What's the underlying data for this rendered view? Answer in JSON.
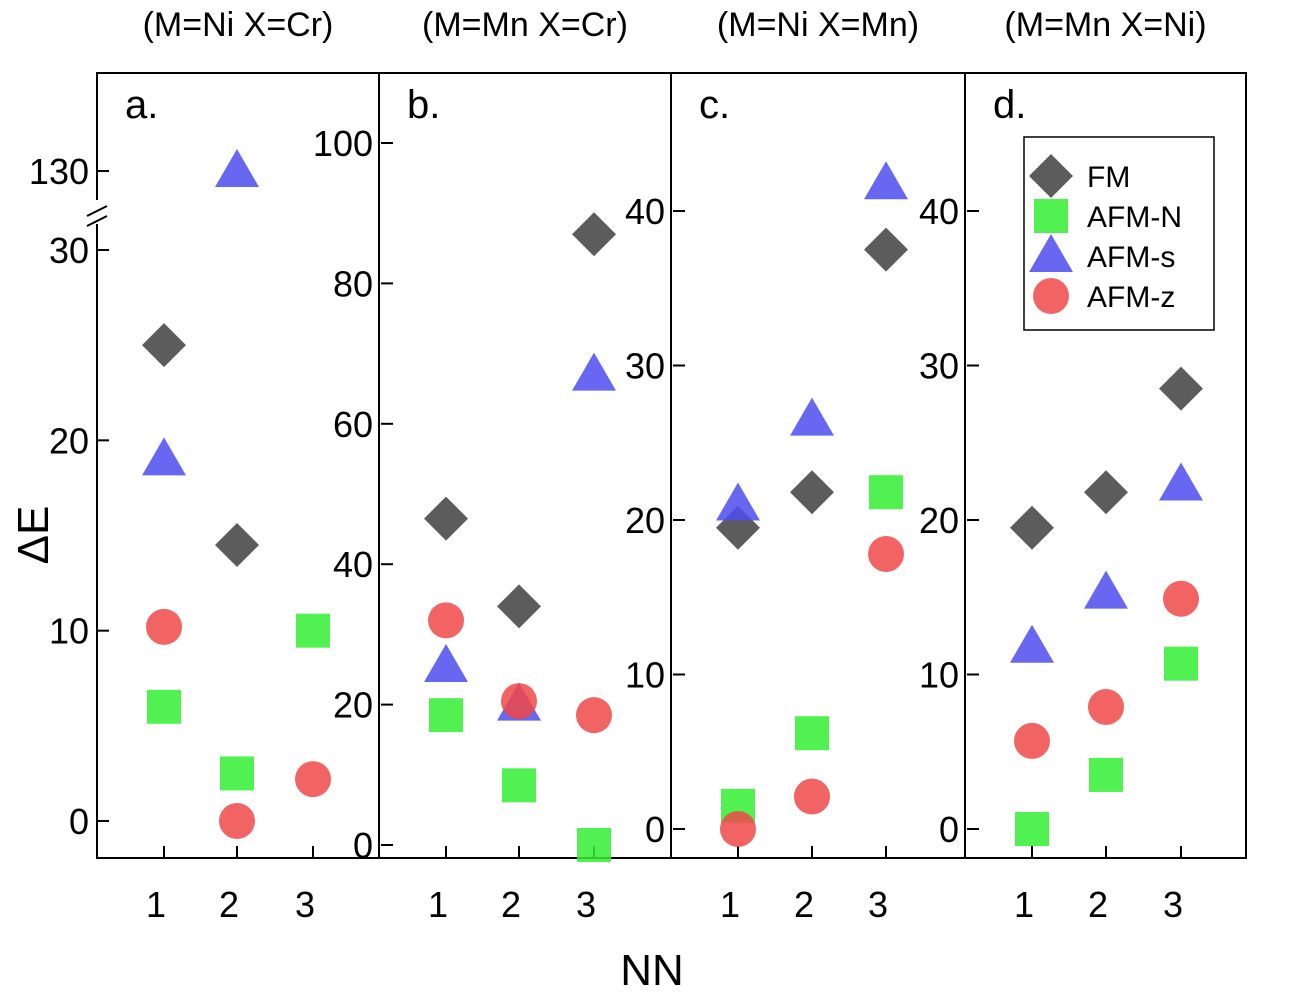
{
  "chart_data": {
    "type": "scatter",
    "xlabel": "NN",
    "ylabel": "ΔE",
    "x_ticks": [
      "1",
      "2",
      "3"
    ],
    "legend": {
      "position": "top-right of panel d",
      "entries": [
        {
          "name": "FM",
          "marker": "diamond",
          "color": "#404040"
        },
        {
          "name": "AFM-N",
          "marker": "square",
          "color": "#33ee33"
        },
        {
          "name": "AFM-s",
          "marker": "triangle",
          "color": "#4c4cf0"
        },
        {
          "name": "AFM-z",
          "marker": "circle",
          "color": "#f04848"
        }
      ]
    },
    "panels": [
      {
        "id": "a",
        "label": "a.",
        "title": "(M=Ni X=Cr)",
        "yticks": [
          0,
          10,
          20,
          30,
          130
        ],
        "ylim": [
          -2,
          136
        ],
        "axis_break": [
          30,
          130
        ],
        "series": [
          {
            "name": "FM",
            "values": [
              25,
              14.5,
              null
            ]
          },
          {
            "name": "AFM-N",
            "values": [
              6,
              2.5,
              10
            ]
          },
          {
            "name": "AFM-s",
            "values": [
              19,
              130,
              null
            ]
          },
          {
            "name": "AFM-z",
            "values": [
              10.2,
              0,
              2.2
            ]
          }
        ]
      },
      {
        "id": "b",
        "label": "b.",
        "title": "(M=Mn X=Cr)",
        "yticks": [
          0,
          20,
          40,
          60,
          80,
          100
        ],
        "ylim": [
          -2,
          111
        ],
        "series": [
          {
            "name": "FM",
            "values": [
              46.5,
              34,
              87
            ]
          },
          {
            "name": "AFM-N",
            "values": [
              18.5,
              8.5,
              0
            ]
          },
          {
            "name": "AFM-s",
            "values": [
              25.5,
              20,
              67
            ]
          },
          {
            "name": "AFM-z",
            "values": [
              32,
              20.5,
              18.5
            ]
          }
        ]
      },
      {
        "id": "c",
        "label": "c.",
        "title": "(M=Ni X=Mn)",
        "yticks": [
          0,
          10,
          20,
          30,
          40
        ],
        "ylim": [
          -2,
          49
        ],
        "series": [
          {
            "name": "FM",
            "values": [
              19.5,
              21.8,
              37.5
            ]
          },
          {
            "name": "AFM-N",
            "values": [
              1.5,
              6.2,
              21.8
            ]
          },
          {
            "name": "AFM-s",
            "values": [
              21,
              26.5,
              41.8
            ]
          },
          {
            "name": "AFM-z",
            "values": [
              0,
              2.1,
              17.8
            ]
          }
        ]
      },
      {
        "id": "d",
        "label": "d.",
        "title": "(M=Mn X=Ni)",
        "yticks": [
          0,
          10,
          20,
          30,
          40
        ],
        "ylim": [
          -2,
          49
        ],
        "series": [
          {
            "name": "FM",
            "values": [
              19.5,
              21.8,
              28.5
            ]
          },
          {
            "name": "AFM-N",
            "values": [
              0,
              3.5,
              10.7
            ]
          },
          {
            "name": "AFM-s",
            "values": [
              11.8,
              15.3,
              22.3
            ]
          },
          {
            "name": "AFM-z",
            "values": [
              5.7,
              7.9,
              14.9
            ]
          }
        ]
      }
    ]
  }
}
